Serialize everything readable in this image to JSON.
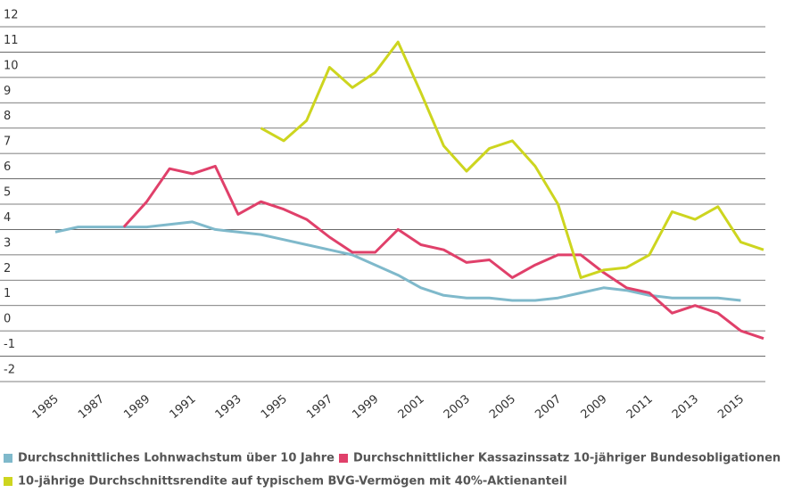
{
  "chart_data": {
    "type": "line",
    "x": [
      1985,
      1986,
      1987,
      1988,
      1989,
      1990,
      1991,
      1992,
      1993,
      1994,
      1995,
      1996,
      1997,
      1998,
      1999,
      2000,
      2001,
      2002,
      2003,
      2004,
      2005,
      2006,
      2007,
      2008,
      2009,
      2010,
      2011,
      2012,
      2013,
      2014,
      2015,
      2016
    ],
    "xlim": [
      1985,
      2016
    ],
    "xticks": [
      1985,
      1987,
      1989,
      1991,
      1993,
      1995,
      1997,
      1999,
      2001,
      2003,
      2005,
      2007,
      2009,
      2011,
      2013,
      2015
    ],
    "ylim": [
      -2,
      12
    ],
    "yticks": [
      -2,
      -1,
      0,
      1,
      2,
      3,
      4,
      5,
      6,
      7,
      8,
      9,
      10,
      11,
      12
    ],
    "grid": true,
    "series": [
      {
        "name": "Durchschnittliches Lohnwachstum über 10 Jahre",
        "color": "#7fb9cb",
        "values": [
          3.9,
          4.1,
          4.1,
          4.1,
          4.1,
          4.2,
          4.3,
          4.0,
          3.9,
          3.8,
          3.6,
          3.4,
          3.2,
          3.0,
          2.6,
          2.2,
          1.7,
          1.4,
          1.3,
          1.3,
          1.2,
          1.2,
          1.3,
          1.5,
          1.7,
          1.6,
          1.4,
          1.3,
          1.3,
          1.3,
          1.2,
          null
        ]
      },
      {
        "name": "Durchschnittlicher Kassazinssatz 10-jähriger Bundesobligationen",
        "color": "#e0406a",
        "values": [
          null,
          null,
          null,
          4.1,
          5.1,
          6.4,
          6.2,
          6.5,
          4.6,
          5.1,
          4.8,
          4.4,
          3.7,
          3.1,
          3.1,
          4.0,
          3.4,
          3.2,
          2.7,
          2.8,
          2.1,
          2.6,
          3.0,
          3.0,
          2.3,
          1.7,
          1.5,
          0.7,
          1.0,
          0.7,
          0.0,
          -0.3
        ]
      },
      {
        "name": "10-jährige Durchschnittsrendite auf typischem BVG-Vermögen mit 40%-Aktienanteil",
        "color": "#cdd51f",
        "values": [
          null,
          null,
          null,
          null,
          null,
          null,
          null,
          null,
          null,
          8.0,
          7.5,
          8.3,
          10.4,
          9.6,
          10.2,
          11.4,
          9.4,
          7.3,
          6.3,
          7.2,
          7.5,
          6.5,
          5.0,
          2.1,
          2.4,
          2.5,
          3.0,
          4.7,
          4.4,
          4.9,
          3.5,
          3.2
        ]
      }
    ]
  }
}
